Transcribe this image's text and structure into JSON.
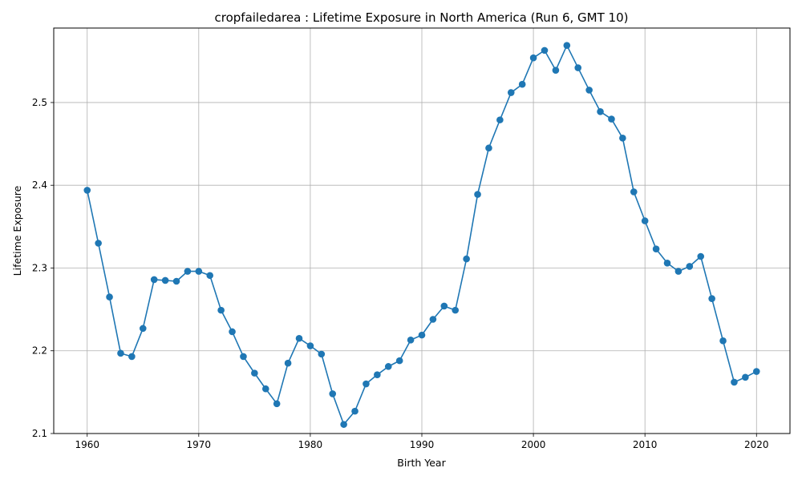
{
  "chart_data": {
    "type": "line",
    "title": "cropfailedarea : Lifetime Exposure in North America (Run 6, GMT 10)",
    "xlabel": "Birth Year",
    "ylabel": "Lifetime Exposure",
    "xlim": [
      1957,
      2023
    ],
    "ylim": [
      2.1,
      2.59
    ],
    "x_ticks": [
      1960,
      1970,
      1980,
      1990,
      2000,
      2010,
      2020
    ],
    "y_ticks": [
      2.1,
      2.2,
      2.3,
      2.4,
      2.5
    ],
    "x_tick_labels": [
      "1960",
      "1970",
      "1980",
      "1990",
      "2000",
      "2010",
      "2020"
    ],
    "y_tick_labels": [
      "2.1",
      "2.2",
      "2.3",
      "2.4",
      "2.5"
    ],
    "grid": true,
    "color": "#1f77b4",
    "marker": "circle",
    "x": [
      1960,
      1961,
      1962,
      1963,
      1964,
      1965,
      1966,
      1967,
      1968,
      1969,
      1970,
      1971,
      1972,
      1973,
      1974,
      1975,
      1976,
      1977,
      1978,
      1979,
      1980,
      1981,
      1982,
      1983,
      1984,
      1985,
      1986,
      1987,
      1988,
      1989,
      1990,
      1991,
      1992,
      1993,
      1994,
      1995,
      1996,
      1997,
      1998,
      1999,
      2000,
      2001,
      2002,
      2003,
      2004,
      2005,
      2006,
      2007,
      2008,
      2009,
      2010,
      2011,
      2012,
      2013,
      2014,
      2015,
      2016,
      2017,
      2018,
      2019,
      2020
    ],
    "y": [
      2.394,
      2.33,
      2.265,
      2.197,
      2.193,
      2.227,
      2.286,
      2.285,
      2.284,
      2.296,
      2.296,
      2.291,
      2.249,
      2.223,
      2.193,
      2.173,
      2.154,
      2.136,
      2.185,
      2.215,
      2.206,
      2.196,
      2.148,
      2.111,
      2.127,
      2.16,
      2.171,
      2.181,
      2.188,
      2.213,
      2.219,
      2.238,
      2.254,
      2.249,
      2.311,
      2.389,
      2.445,
      2.479,
      2.512,
      2.522,
      2.554,
      2.563,
      2.539,
      2.569,
      2.542,
      2.515,
      2.489,
      2.48,
      2.457,
      2.392,
      2.357,
      2.323,
      2.306,
      2.296,
      2.302,
      2.314,
      2.263,
      2.212,
      2.162,
      2.168,
      2.175
    ]
  }
}
